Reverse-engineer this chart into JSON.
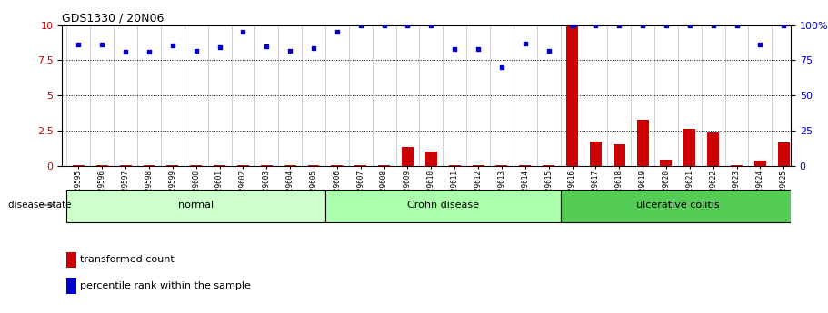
{
  "title": "GDS1330 / 20N06",
  "samples": [
    "GSM29595",
    "GSM29596",
    "GSM29597",
    "GSM29598",
    "GSM29599",
    "GSM29600",
    "GSM29601",
    "GSM29602",
    "GSM29603",
    "GSM29604",
    "GSM29605",
    "GSM29606",
    "GSM29607",
    "GSM29608",
    "GSM29609",
    "GSM29610",
    "GSM29611",
    "GSM29612",
    "GSM29613",
    "GSM29614",
    "GSM29615",
    "GSM29616",
    "GSM29617",
    "GSM29618",
    "GSM29619",
    "GSM29620",
    "GSM29621",
    "GSM29622",
    "GSM29623",
    "GSM29624",
    "GSM29625"
  ],
  "red_values": [
    0.08,
    0.08,
    0.08,
    0.07,
    0.07,
    0.07,
    0.07,
    0.07,
    0.07,
    0.07,
    0.07,
    0.07,
    0.07,
    0.08,
    1.35,
    1.05,
    0.07,
    0.07,
    0.07,
    0.07,
    0.07,
    9.9,
    1.75,
    1.55,
    3.3,
    0.45,
    2.65,
    2.4,
    0.07,
    0.4,
    1.65
  ],
  "blue_values": [
    8.6,
    8.6,
    8.1,
    8.1,
    8.55,
    8.2,
    8.4,
    9.5,
    8.5,
    8.2,
    8.35,
    9.5,
    9.95,
    9.95,
    9.95,
    9.95,
    8.3,
    8.3,
    7.0,
    8.7,
    8.2,
    9.95,
    9.95,
    9.95,
    9.95,
    9.95,
    9.95,
    9.95,
    9.95,
    8.6,
    9.95
  ],
  "groups": [
    {
      "label": "normal",
      "start": 0,
      "end": 10,
      "color": "#ccffcc"
    },
    {
      "label": "Crohn disease",
      "start": 11,
      "end": 20,
      "color": "#aaffaa"
    },
    {
      "label": "ulcerative colitis",
      "start": 21,
      "end": 30,
      "color": "#55cc55"
    }
  ],
  "ylim_left": [
    0,
    10
  ],
  "ylim_right": [
    0,
    100
  ],
  "yticks_left": [
    0,
    2.5,
    5,
    7.5,
    10
  ],
  "yticks_right": [
    0,
    25,
    50,
    75,
    100
  ],
  "red_color": "#cc0000",
  "blue_color": "#0000cc",
  "bar_width": 0.5,
  "disease_state_label": "disease state",
  "legend_red": "transformed count",
  "legend_blue": "percentile rank within the sample",
  "xlim": [
    -0.7,
    30.3
  ]
}
